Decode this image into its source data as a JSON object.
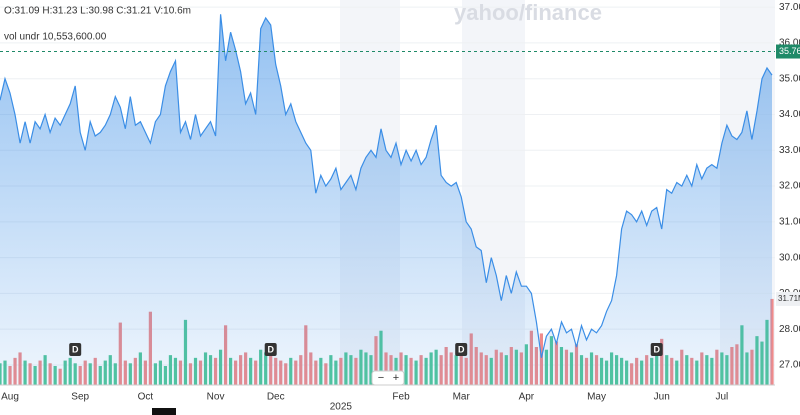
{
  "chart_data": {
    "type": "area",
    "header": "O:31.09 H:31.23 L:30.98 C:31.21 V:10.6m",
    "indicator": "vol undr 10,553,600.00",
    "watermark": "yahoo/finance",
    "categories": [
      null,
      null,
      "Aug",
      null,
      null,
      null,
      null,
      null,
      null,
      null,
      null,
      null,
      null,
      null,
      null,
      null,
      "Sep",
      null,
      null,
      null,
      null,
      null,
      null,
      null,
      null,
      null,
      null,
      null,
      null,
      "Oct",
      null,
      null,
      null,
      null,
      null,
      null,
      null,
      null,
      null,
      null,
      null,
      null,
      null,
      "Nov",
      null,
      null,
      null,
      null,
      null,
      null,
      null,
      null,
      null,
      null,
      null,
      "Dec",
      null,
      null,
      null,
      null,
      null,
      null,
      null,
      null,
      null,
      null,
      null,
      null,
      "2025",
      null,
      null,
      null,
      null,
      null,
      null,
      null,
      null,
      null,
      null,
      null,
      "Feb",
      null,
      null,
      null,
      null,
      null,
      null,
      null,
      null,
      null,
      null,
      null,
      "Mar",
      null,
      null,
      null,
      null,
      null,
      null,
      null,
      null,
      null,
      null,
      null,
      null,
      "Apr",
      null,
      null,
      null,
      null,
      null,
      null,
      null,
      null,
      null,
      null,
      null,
      null,
      null,
      "May",
      null,
      null,
      null,
      null,
      null,
      null,
      null,
      null,
      null,
      null,
      null,
      null,
      "Jun",
      null,
      null,
      null,
      null,
      null,
      null,
      null,
      null,
      null,
      null,
      null,
      "Jul",
      null,
      null,
      null,
      null,
      null,
      null,
      null,
      null,
      null,
      null
    ],
    "series": [
      {
        "color": "#3b8ee6",
        "values": [
          34.4,
          35.0,
          34.6,
          34.0,
          33.2,
          33.8,
          33.2,
          33.8,
          33.6,
          34.0,
          33.5,
          33.9,
          33.7,
          34.0,
          34.3,
          34.8,
          33.5,
          33.0,
          33.8,
          33.4,
          33.5,
          33.7,
          34.0,
          34.5,
          34.2,
          33.6,
          34.5,
          33.7,
          33.8,
          33.5,
          33.2,
          33.8,
          34.0,
          34.8,
          35.2,
          35.5,
          33.5,
          33.8,
          33.3,
          34.0,
          33.4,
          33.6,
          33.8,
          33.4,
          36.8,
          35.5,
          36.3,
          35.8,
          35.2,
          34.3,
          34.6,
          34.0,
          36.4,
          36.7,
          36.5,
          35.4,
          34.8,
          34.0,
          34.3,
          33.8,
          33.5,
          33.2,
          33.0,
          31.8,
          32.3,
          32.0,
          32.2,
          32.5,
          31.9,
          32.1,
          32.3,
          31.9,
          32.5,
          32.8,
          33.0,
          32.8,
          33.6,
          33.0,
          32.8,
          33.2,
          32.6,
          33.0,
          32.7,
          33.0,
          32.6,
          32.8,
          33.3,
          33.7,
          32.3,
          32.1,
          32.0,
          32.1,
          31.7,
          31.0,
          30.8,
          30.3,
          30.2,
          29.3,
          30.0,
          29.5,
          28.8,
          29.5,
          29.0,
          29.6,
          29.2,
          29.2,
          29.0,
          28.2,
          27.2,
          27.8,
          28.0,
          27.6,
          28.2,
          27.9,
          28.0,
          27.5,
          28.1,
          27.7,
          28.0,
          27.9,
          28.1,
          28.5,
          28.8,
          29.5,
          30.8,
          31.3,
          31.2,
          31.0,
          31.3,
          30.9,
          31.3,
          31.4,
          30.8,
          31.9,
          31.8,
          32.1,
          32.0,
          32.3,
          32.0,
          32.6,
          32.2,
          32.5,
          32.6,
          32.5,
          33.2,
          33.7,
          33.4,
          33.3,
          33.5,
          34.1,
          33.3,
          34.1,
          35.0,
          35.3,
          35.1
        ]
      },
      {
        "axis": "y2",
        "up_color": "#52c79a",
        "down_color": "#f08b8b",
        "values": [
          8,
          9,
          7,
          10,
          12,
          9,
          8,
          7,
          9,
          11,
          8,
          7,
          6,
          9,
          10,
          8,
          7,
          9,
          8,
          10,
          7,
          9,
          11,
          8,
          23,
          9,
          8,
          10,
          12,
          9,
          27,
          8,
          9,
          7,
          11,
          10,
          9,
          24,
          8,
          10,
          9,
          12,
          11,
          10,
          13,
          22,
          10,
          9,
          11,
          12,
          10,
          9,
          13,
          12,
          11,
          10,
          9,
          8,
          10,
          9,
          11,
          22,
          12,
          9,
          10,
          8,
          11,
          9,
          10,
          12,
          11,
          10,
          13,
          12,
          11,
          18,
          20,
          12,
          11,
          10,
          12,
          11,
          10,
          9,
          11,
          10,
          12,
          13,
          11,
          14,
          12,
          11,
          13,
          10,
          19,
          14,
          12,
          11,
          10,
          13,
          12,
          11,
          14,
          13,
          12,
          15,
          20,
          14,
          19,
          13,
          18,
          16,
          14,
          13,
          12,
          15,
          11,
          10,
          12,
          11,
          10,
          9,
          12,
          11,
          10,
          9,
          8,
          10,
          9,
          11,
          10,
          12,
          17,
          11,
          10,
          9,
          13,
          11,
          10,
          9,
          12,
          11,
          10,
          13,
          12,
          11,
          14,
          15,
          22,
          12,
          13,
          18,
          16,
          24,
          31.71
        ],
        "last_label": "31.71M"
      }
    ],
    "ylim": [
      26.44,
      37.2
    ],
    "yticks": [
      {
        "value": 37,
        "label": "37.00"
      },
      {
        "value": 36,
        "label": "36.00"
      },
      {
        "value": 35,
        "label": "35.00"
      },
      {
        "value": 34,
        "label": "34.00"
      },
      {
        "value": 33,
        "label": "33.00"
      },
      {
        "value": 32,
        "label": "32.00"
      },
      {
        "value": 31,
        "label": "31.00"
      },
      {
        "value": 30,
        "label": "30.00"
      },
      {
        "value": 29,
        "label": "29.00"
      },
      {
        "value": 28,
        "label": "28.00"
      },
      {
        "value": 27,
        "label": "27.00"
      }
    ],
    "y2lim": [
      0,
      35
    ],
    "last_price": 35.76,
    "last_price_color": "#1f8a68",
    "dividends": [
      {
        "at": 15,
        "label": "D"
      },
      {
        "at": 54,
        "label": "D"
      },
      {
        "at": 92,
        "label": "D"
      },
      {
        "at": 131,
        "label": "D"
      }
    ],
    "zoom": [
      "−",
      "+"
    ],
    "grid": true
  }
}
